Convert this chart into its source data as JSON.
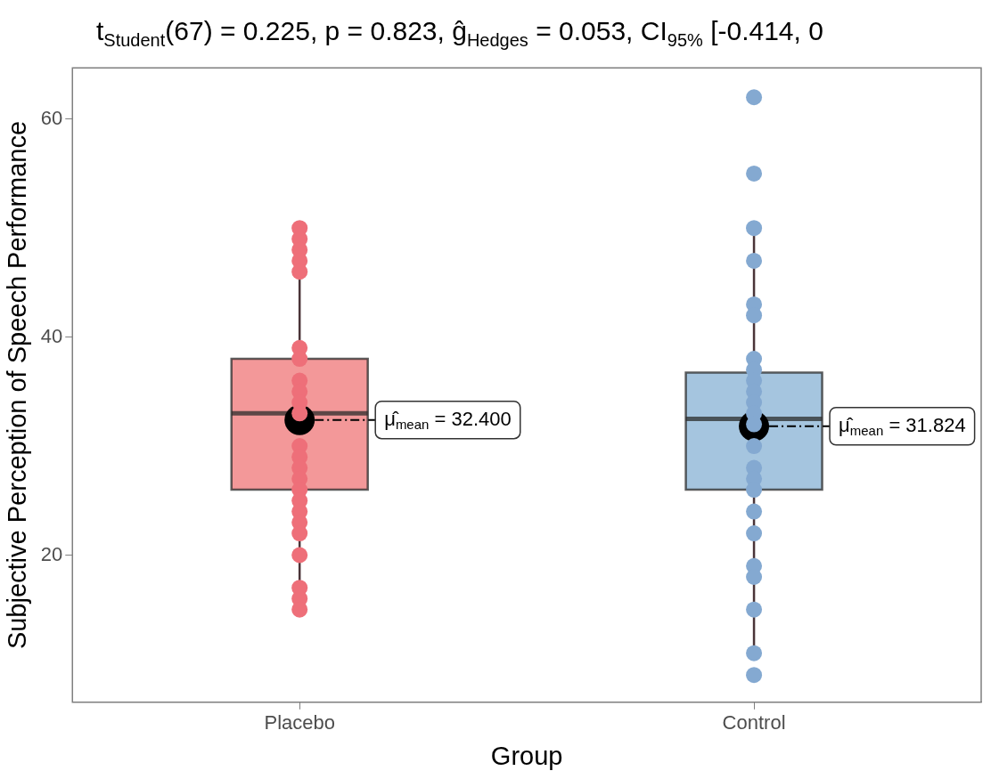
{
  "chart_data": {
    "type": "box",
    "title": "t$_{Student}$(67) = 0.225, p = 0.823, ĝ$_{Hedges}$ = 0.053, CI$_{95%}$ [-0.414, 0",
    "xlabel": "Group",
    "ylabel": "Subjective Perception of Speech Performance",
    "categories": [
      "Placebo",
      "Control"
    ],
    "colors": [
      "#e41a1c",
      "#377eb8"
    ],
    "boxes": [
      {
        "low": 15,
        "q1": 26,
        "median": 33,
        "q3": 38,
        "high": 50,
        "mean": 32.4
      },
      {
        "low": 11,
        "q1": 26,
        "median": 32.5,
        "q3": 36.75,
        "high": 50,
        "mean": 31.824
      }
    ],
    "series": [
      {
        "type": "scatter",
        "color": "#ee6f79",
        "x": [
          "Placebo",
          "Placebo",
          "Placebo",
          "Placebo",
          "Placebo",
          "Placebo",
          "Placebo",
          "Placebo",
          "Placebo",
          "Placebo",
          "Placebo",
          "Placebo",
          "Placebo",
          "Placebo",
          "Placebo",
          "Placebo",
          "Placebo",
          "Placebo",
          "Placebo",
          "Placebo",
          "Placebo",
          "Placebo",
          "Placebo",
          "Placebo"
        ],
        "values": [
          50,
          49,
          48,
          47,
          46,
          39,
          38,
          36,
          35,
          34,
          33,
          30,
          29,
          28,
          27,
          26,
          25,
          24,
          23,
          22,
          20,
          17,
          16,
          15
        ]
      },
      {
        "type": "scatter",
        "color": "#84a9d1",
        "x": [
          "Control",
          "Control",
          "Control",
          "Control",
          "Control",
          "Control",
          "Control",
          "Control",
          "Control",
          "Control",
          "Control",
          "Control",
          "Control",
          "Control",
          "Control",
          "Control",
          "Control",
          "Control",
          "Control",
          "Control",
          "Control",
          "Control",
          "Control",
          "Control"
        ],
        "values": [
          62,
          55,
          50,
          47,
          43,
          42,
          38,
          37,
          36,
          35,
          34,
          33,
          32,
          30,
          28,
          27,
          26,
          24,
          22,
          19,
          18,
          15,
          11,
          9
        ]
      }
    ],
    "ylim": [
      6.5,
      64.7
    ],
    "yticks": [
      20,
      40,
      60
    ],
    "grid": false,
    "legend": false,
    "marker": "circle",
    "annotations": [
      "μ̂$_{mean}$ = 32.400",
      "μ̂$_{mean}$ = 31.824"
    ]
  }
}
